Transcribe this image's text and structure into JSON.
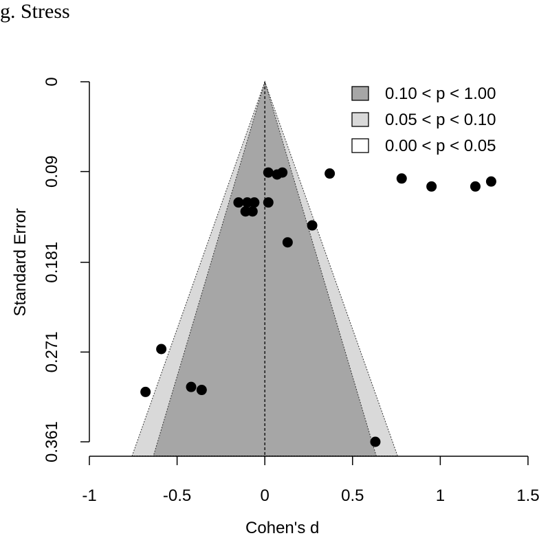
{
  "panel_title": "g. Stress",
  "chart_data": {
    "type": "scatter",
    "subtype": "contour-enhanced funnel plot",
    "title": "g. Stress",
    "xlabel": "Cohen's d",
    "ylabel": "Standard Error",
    "xlim": [
      -1,
      1.6
    ],
    "ylim": [
      0.361,
      0
    ],
    "x_ticks": [
      -1,
      -0.5,
      0,
      0.5,
      1,
      1.5
    ],
    "x_tick_labels": [
      "-1",
      "-0.5",
      "0",
      "0.5",
      "1",
      "1.5"
    ],
    "y_ticks": [
      0,
      0.09,
      0.181,
      0.271,
      0.361
    ],
    "y_tick_labels": [
      "0",
      "0.09",
      "0.181",
      "0.271",
      "0.361"
    ],
    "y_reversed": true,
    "reference_line_x": 0,
    "contours": [
      {
        "label": "0.10 < p < 1.00",
        "z": 1.645,
        "color": "#a6a6a6"
      },
      {
        "label": "0.05 < p < 0.10",
        "z": 1.96,
        "color": "#d9d9d9"
      },
      {
        "label": "0.00 < p < 0.05",
        "z": null,
        "color": "#ffffff"
      }
    ],
    "legend_position": "top-right",
    "points": [
      {
        "x": 0.02,
        "y": 0.091
      },
      {
        "x": 0.07,
        "y": 0.093
      },
      {
        "x": 0.1,
        "y": 0.091
      },
      {
        "x": 0.37,
        "y": 0.092
      },
      {
        "x": 0.78,
        "y": 0.097
      },
      {
        "x": 0.95,
        "y": 0.105
      },
      {
        "x": 1.2,
        "y": 0.105
      },
      {
        "x": 1.29,
        "y": 0.1
      },
      {
        "x": -0.15,
        "y": 0.121
      },
      {
        "x": -0.1,
        "y": 0.121
      },
      {
        "x": -0.06,
        "y": 0.121
      },
      {
        "x": 0.02,
        "y": 0.121
      },
      {
        "x": -0.11,
        "y": 0.13
      },
      {
        "x": -0.07,
        "y": 0.13
      },
      {
        "x": 0.27,
        "y": 0.144
      },
      {
        "x": 0.13,
        "y": 0.161
      },
      {
        "x": -0.59,
        "y": 0.268
      },
      {
        "x": -0.42,
        "y": 0.306
      },
      {
        "x": -0.36,
        "y": 0.309
      },
      {
        "x": -0.68,
        "y": 0.311
      },
      {
        "x": 0.63,
        "y": 0.361
      }
    ]
  }
}
